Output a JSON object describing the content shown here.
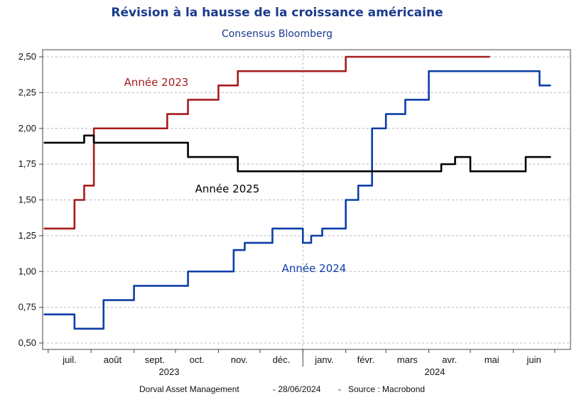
{
  "chart_data": {
    "type": "line",
    "title": "Révision à la hausse de la croissance américaine",
    "subtitle": "Consensus Bloomberg",
    "xlabel": "",
    "ylabel": "",
    "ylim": [
      0.5,
      2.5
    ],
    "y_ticks": [
      "0,50",
      "0,75",
      "1,00",
      "1,25",
      "1,50",
      "1,75",
      "2,00",
      "2,25",
      "2,50"
    ],
    "x_tick_labels": [
      "juil.",
      "août",
      "sept.",
      "oct.",
      "nov.",
      "déc.",
      "janv.",
      "févr.",
      "mars",
      "avr.",
      "mai",
      "juin"
    ],
    "x_year_labels": [
      "2023",
      "2024"
    ],
    "grid": true,
    "colors": {
      "2023": "#a51c1c",
      "2024": "#0d3ea8",
      "2025": "#000000"
    },
    "x_dates": [
      "2023-06-28",
      "2023-07-20",
      "2023-07-27",
      "2023-08-03",
      "2023-08-10",
      "2023-09-01",
      "2023-09-25",
      "2023-10-10",
      "2023-11-01",
      "2023-11-12",
      "2023-11-15",
      "2023-11-20",
      "2023-12-10",
      "2024-01-01",
      "2024-01-07",
      "2024-01-15",
      "2024-01-20",
      "2024-02-01",
      "2024-02-10",
      "2024-02-20",
      "2024-03-01",
      "2024-03-15",
      "2024-04-01",
      "2024-04-10",
      "2024-04-20",
      "2024-05-01",
      "2024-05-15",
      "2024-06-10",
      "2024-06-20",
      "2024-06-28"
    ],
    "series": [
      {
        "name": "Année 2023",
        "values": [
          1.3,
          1.5,
          1.6,
          2.0,
          2.0,
          2.0,
          2.1,
          2.2,
          2.3,
          2.3,
          2.4,
          2.4,
          2.4,
          2.4,
          2.4,
          2.4,
          2.4,
          2.5,
          2.5,
          2.5,
          2.5,
          2.5,
          2.5,
          2.5,
          2.5,
          2.5,
          2.5,
          null,
          null,
          null
        ]
      },
      {
        "name": "Année 2024",
        "values": [
          0.7,
          0.6,
          0.6,
          0.6,
          0.8,
          0.9,
          0.9,
          1.0,
          1.0,
          1.15,
          1.15,
          1.2,
          1.3,
          1.2,
          1.25,
          1.3,
          1.3,
          1.5,
          1.6,
          2.0,
          2.1,
          2.2,
          2.4,
          2.4,
          2.4,
          2.4,
          2.4,
          2.4,
          2.3,
          2.3
        ]
      },
      {
        "name": "Année 2025",
        "values": [
          1.9,
          1.9,
          1.95,
          1.9,
          1.9,
          1.9,
          1.9,
          1.8,
          1.8,
          1.8,
          1.7,
          1.7,
          1.7,
          1.7,
          1.7,
          1.7,
          1.7,
          1.7,
          1.7,
          1.7,
          1.7,
          1.7,
          1.7,
          1.75,
          1.8,
          1.7,
          1.7,
          1.8,
          1.8,
          1.8
        ]
      }
    ]
  },
  "footer": {
    "source_org": "Dorval Asset Management",
    "date": "- 28/06/2024",
    "source": "-   Source : Macrobond"
  }
}
